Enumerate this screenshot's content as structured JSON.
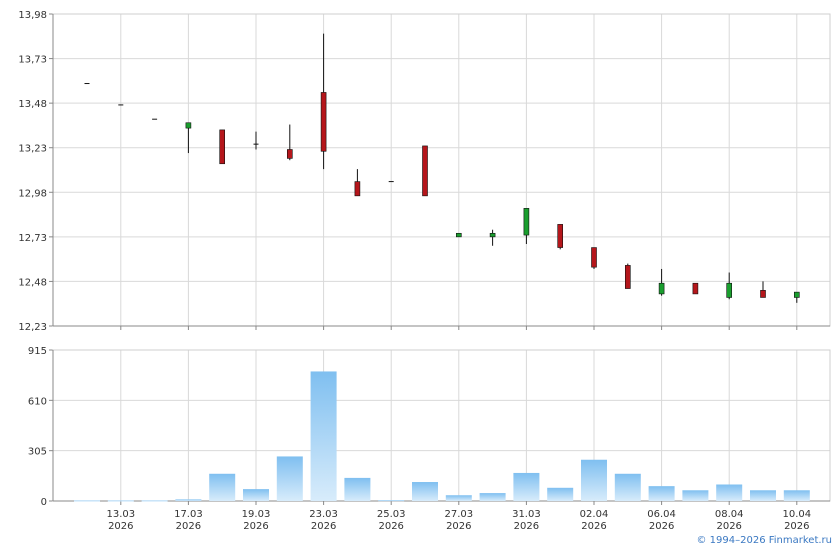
{
  "chart_data": [
    {
      "type": "candlestick",
      "title": "",
      "ylim": [
        12.23,
        13.98
      ],
      "y_ticks": [
        "13,98",
        "13,73",
        "13,48",
        "13,23",
        "12,98",
        "12,73",
        "12,48",
        "12,23"
      ],
      "y_tick_values": [
        13.98,
        13.73,
        13.48,
        13.23,
        12.98,
        12.73,
        12.48,
        12.23
      ],
      "x_ticks": [
        {
          "day": "13.03",
          "year": "2026"
        },
        {
          "day": "17.03",
          "year": "2026"
        },
        {
          "day": "19.03",
          "year": "2026"
        },
        {
          "day": "23.03",
          "year": "2026"
        },
        {
          "day": "25.03",
          "year": "2026"
        },
        {
          "day": "27.03",
          "year": "2026"
        },
        {
          "day": "31.03",
          "year": "2026"
        },
        {
          "day": "02.04",
          "year": "2026"
        },
        {
          "day": "06.04",
          "year": "2026"
        },
        {
          "day": "08.04",
          "year": "2026"
        },
        {
          "day": "10.04",
          "year": "2026"
        }
      ],
      "grid": true,
      "up_color": "#1a9e2e",
      "down_color": "#b5161b",
      "candles": [
        {
          "open": 13.59,
          "high": 13.59,
          "low": 13.59,
          "close": 13.59
        },
        {
          "open": 13.47,
          "high": 13.47,
          "low": 13.47,
          "close": 13.47
        },
        {
          "open": 13.39,
          "high": 13.39,
          "low": 13.39,
          "close": 13.39
        },
        {
          "open": 13.34,
          "high": 13.37,
          "low": 13.2,
          "close": 13.37
        },
        {
          "open": 13.33,
          "high": 13.33,
          "low": 13.14,
          "close": 13.14
        },
        {
          "open": 13.25,
          "high": 13.32,
          "low": 13.22,
          "close": 13.25
        },
        {
          "open": 13.22,
          "high": 13.36,
          "low": 13.16,
          "close": 13.17
        },
        {
          "open": 13.54,
          "high": 13.87,
          "low": 13.11,
          "close": 13.21
        },
        {
          "open": 13.04,
          "high": 13.11,
          "low": 12.96,
          "close": 12.96
        },
        {
          "open": 13.04,
          "high": 13.04,
          "low": 13.04,
          "close": 13.04
        },
        {
          "open": 13.24,
          "high": 13.24,
          "low": 12.96,
          "close": 12.96
        },
        {
          "open": 12.73,
          "high": 12.75,
          "low": 12.73,
          "close": 12.75
        },
        {
          "open": 12.73,
          "high": 12.77,
          "low": 12.68,
          "close": 12.75
        },
        {
          "open": 12.74,
          "high": 12.89,
          "low": 12.69,
          "close": 12.89
        },
        {
          "open": 12.8,
          "high": 12.8,
          "low": 12.66,
          "close": 12.67
        },
        {
          "open": 12.67,
          "high": 12.67,
          "low": 12.55,
          "close": 12.56
        },
        {
          "open": 12.57,
          "high": 12.58,
          "low": 12.44,
          "close": 12.44
        },
        {
          "open": 12.41,
          "high": 12.55,
          "low": 12.4,
          "close": 12.47
        },
        {
          "open": 12.47,
          "high": 12.47,
          "low": 12.41,
          "close": 12.41
        },
        {
          "open": 12.39,
          "high": 12.53,
          "low": 12.38,
          "close": 12.47
        },
        {
          "open": 12.43,
          "high": 12.48,
          "low": 12.39,
          "close": 12.39
        },
        {
          "open": 12.39,
          "high": 12.42,
          "low": 12.36,
          "close": 12.42
        }
      ]
    },
    {
      "type": "bar",
      "title": "",
      "ylim": [
        0,
        915
      ],
      "y_ticks": [
        "915",
        "610",
        "305",
        "0"
      ],
      "y_tick_values": [
        915,
        610,
        305,
        0
      ],
      "bar_color": "#7fbff0",
      "values": [
        3,
        3,
        3,
        10,
        165,
        72,
        270,
        785,
        140,
        5,
        115,
        35,
        48,
        170,
        80,
        250,
        165,
        90,
        65,
        100,
        65,
        65
      ]
    }
  ],
  "footer": {
    "copyright": "© 1994–2026 Finmarket.ru",
    "copyright_color": "#3a78c2"
  }
}
